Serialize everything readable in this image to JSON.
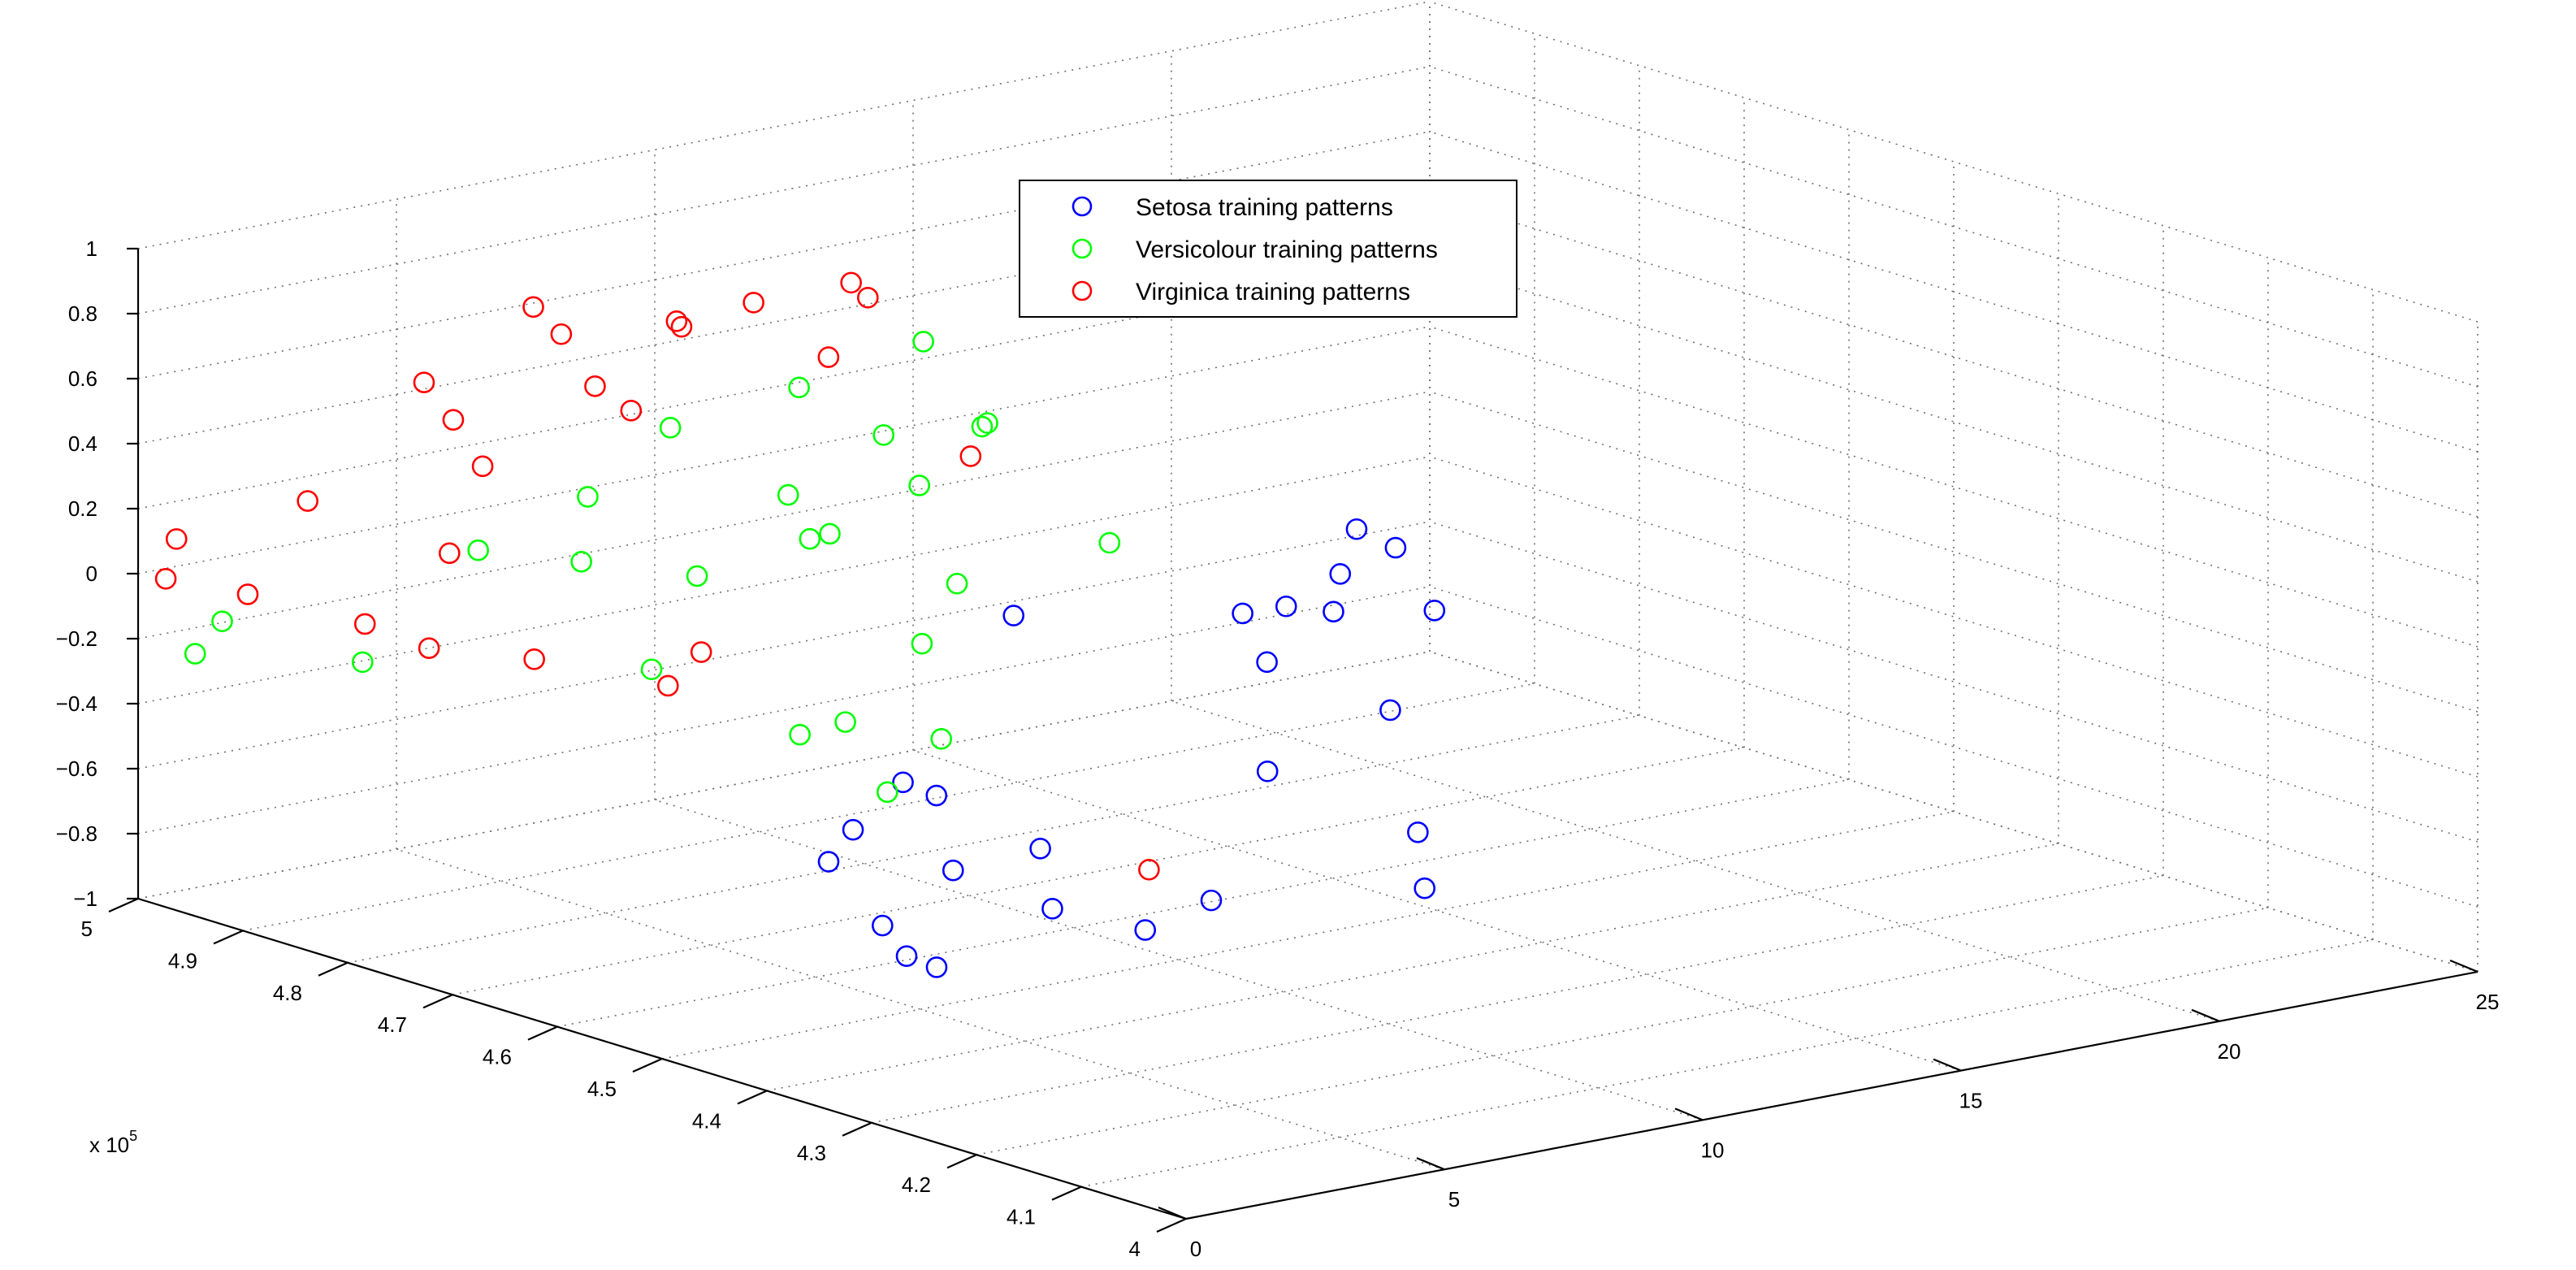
{
  "chart_data": {
    "type": "scatter",
    "title": "",
    "xlabel": "",
    "ylabel": "",
    "zlabel": "",
    "x_axis": {
      "range": [
        0,
        25
      ],
      "ticks": [
        0,
        5,
        10,
        15,
        20,
        25
      ]
    },
    "y_axis": {
      "range": [
        4.0,
        5.0
      ],
      "ticks": [
        4,
        4.1,
        4.2,
        4.3,
        4.4,
        4.5,
        4.6,
        4.7,
        4.8,
        4.9,
        5
      ],
      "tick_labels": [
        "4",
        "4.1",
        "4.2",
        "4.3",
        "4.4",
        "4.5",
        "4.6",
        "4.7",
        "4.8",
        "4.9",
        "5"
      ],
      "multiplier_label": "x 10",
      "multiplier_exponent": "5"
    },
    "z_axis": {
      "range": [
        -1,
        1
      ],
      "ticks": [
        -1,
        -0.8,
        -0.6,
        -0.4,
        -0.2,
        0,
        0.2,
        0.4,
        0.6,
        0.8,
        1
      ],
      "tick_labels": [
        "−1",
        "−0.8",
        "−0.6",
        "−0.4",
        "−0.2",
        "0",
        "0.2",
        "0.4",
        "0.6",
        "0.8",
        "1"
      ]
    },
    "grid": true,
    "legend_position": "top-center",
    "series": [
      {
        "name": "Setosa  training patterns",
        "color": "#0000ff",
        "marker": "circle",
        "points": [
          {
            "x": 22.57,
            "y": 4.95,
            "z": -0.5
          },
          {
            "x": 22.31,
            "y": 4.9,
            "z": -0.5
          },
          {
            "x": 22.86,
            "y": 4.89,
            "z": -0.7
          },
          {
            "x": 20.63,
            "y": 4.87,
            "z": -0.5
          },
          {
            "x": 19.99,
            "y": 4.89,
            "z": -0.6
          },
          {
            "x": 19.08,
            "y": 4.8,
            "z": -0.5
          },
          {
            "x": 17.93,
            "y": 4.83,
            "z": -0.5
          },
          {
            "x": 17.59,
            "y": 4.79,
            "z": -0.6
          },
          {
            "x": 15.12,
            "y": 4.91,
            "z": -0.5
          },
          {
            "x": 15.92,
            "y": 4.59,
            "z": -0.5
          },
          {
            "x": 13.34,
            "y": 4.58,
            "z": -0.6
          },
          {
            "x": 14.02,
            "y": 4.47,
            "z": -0.7
          },
          {
            "x": 12.37,
            "y": 4.88,
            "z": -0.9
          },
          {
            "x": 10.99,
            "y": 4.78,
            "z": -0.8
          },
          {
            "x": 10.16,
            "y": 4.64,
            "z": -0.8
          },
          {
            "x": 11.92,
            "y": 4.36,
            "z": -0.7
          },
          {
            "x": 11.44,
            "y": 4.54,
            "z": -0.9
          },
          {
            "x": 8.27,
            "y": 4.63,
            "z": -0.8
          },
          {
            "x": 7.96,
            "y": 4.52,
            "z": -0.8
          },
          {
            "x": 6.13,
            "y": 4.62,
            "z": -0.6
          },
          {
            "x": 5.86,
            "y": 4.63,
            "z": -0.7
          },
          {
            "x": 5.7,
            "y": 4.32,
            "z": -0.6
          },
          {
            "x": 5.28,
            "y": 4.55,
            "z": -0.8
          },
          {
            "x": 4.3,
            "y": 4.45,
            "z": -0.8
          },
          {
            "x": 3.11,
            "y": 4.42,
            "z": -0.7
          }
        ]
      },
      {
        "name": "Versicolour  training patterns",
        "color": "#00ff00",
        "marker": "circle",
        "points": [
          {
            "x": 14.59,
            "y": 4.97,
            "z": 0.3
          },
          {
            "x": 14.51,
            "y": 4.91,
            "z": 0.1
          },
          {
            "x": 13.01,
            "y": 4.93,
            "z": 0.1
          },
          {
            "x": 12.59,
            "y": 4.99,
            "z": 0.2
          },
          {
            "x": 12.18,
            "y": 4.79,
            "z": 0.3
          },
          {
            "x": 11.47,
            "y": 4.82,
            "z": 0.1
          },
          {
            "x": 11.5,
            "y": 4.64,
            "z": 0.1
          },
          {
            "x": 9.54,
            "y": 4.85,
            "z": 0.1
          },
          {
            "x": 9.49,
            "y": 4.96,
            "z": 0.2
          },
          {
            "x": 8.52,
            "y": 4.76,
            "z": 0.1
          },
          {
            "x": 9.35,
            "y": 4.82,
            "z": 0.0
          },
          {
            "x": 9.36,
            "y": 4.68,
            "z": 0.0
          },
          {
            "x": 7.87,
            "y": 4.64,
            "z": -0.1
          },
          {
            "x": 7.08,
            "y": 4.92,
            "z": 0.1
          },
          {
            "x": 6.56,
            "y": 4.79,
            "z": 0.0
          },
          {
            "x": 5.74,
            "y": 4.86,
            "z": 0.0
          },
          {
            "x": 5.17,
            "y": 4.58,
            "z": -0.2
          },
          {
            "x": 4.96,
            "y": 4.92,
            "z": 0.0
          },
          {
            "x": 4.39,
            "y": 4.45,
            "z": -0.1
          },
          {
            "x": 3.65,
            "y": 4.69,
            "z": -0.1
          },
          {
            "x": 2.94,
            "y": 4.43,
            "z": -0.2
          },
          {
            "x": 2.87,
            "y": 4.51,
            "z": -0.1
          },
          {
            "x": 0.49,
            "y": 4.81,
            "z": -0.1
          },
          {
            "x": 0.41,
            "y": 4.94,
            "z": -0.1
          },
          {
            "x": 0.09,
            "y": 4.95,
            "z": -0.2
          }
        ]
      },
      {
        "name": "Virginica training patterns",
        "color": "#ff0000",
        "marker": "circle",
        "points": [
          {
            "x": 13.11,
            "y": 4.95,
            "z": 0.5
          },
          {
            "x": 10.96,
            "y": 4.86,
            "z": 0.7
          },
          {
            "x": 10.29,
            "y": 4.92,
            "z": 0.6
          },
          {
            "x": 10.32,
            "y": 4.85,
            "z": 0.5
          },
          {
            "x": 9.42,
            "y": 4.67,
            "z": 0.4
          },
          {
            "x": 8.49,
            "y": 4.9,
            "z": 0.6
          },
          {
            "x": 7.38,
            "y": 4.85,
            "z": 0.7
          },
          {
            "x": 6.77,
            "y": 4.93,
            "z": 0.6
          },
          {
            "x": 6.23,
            "y": 4.93,
            "z": 0.7
          },
          {
            "x": 6.41,
            "y": 4.88,
            "z": 0.5
          },
          {
            "x": 5.89,
            "y": 4.82,
            "z": 0.5
          },
          {
            "x": 4.52,
            "y": 4.95,
            "z": 0.5
          },
          {
            "x": 4.68,
            "y": 4.93,
            "z": 0.4
          },
          {
            "x": 3.22,
            "y": 4.83,
            "z": 0.4
          },
          {
            "x": 1.97,
            "y": 4.8,
            "z": 0.2
          },
          {
            "x": 2.38,
            "y": 4.58,
            "z": 0.1
          },
          {
            "x": 1.94,
            "y": 4.59,
            "z": 0.0
          },
          {
            "x": 1.05,
            "y": 4.89,
            "z": 0.3
          },
          {
            "x": 0.54,
            "y": 4.99,
            "z": 0.1
          },
          {
            "x": 0.13,
            "y": 4.98,
            "z": 0.0
          },
          {
            "x": 0.5,
            "y": 4.92,
            "z": 0.0
          },
          {
            "x": 0.74,
            "y": 4.82,
            "z": 0.0
          },
          {
            "x": 0.56,
            "y": 4.75,
            "z": 0.0
          },
          {
            "x": 1.38,
            "y": 4.69,
            "z": 0.0
          },
          {
            "x": 0.5,
            "y": 4.06,
            "z": 0.0
          }
        ]
      }
    ]
  }
}
